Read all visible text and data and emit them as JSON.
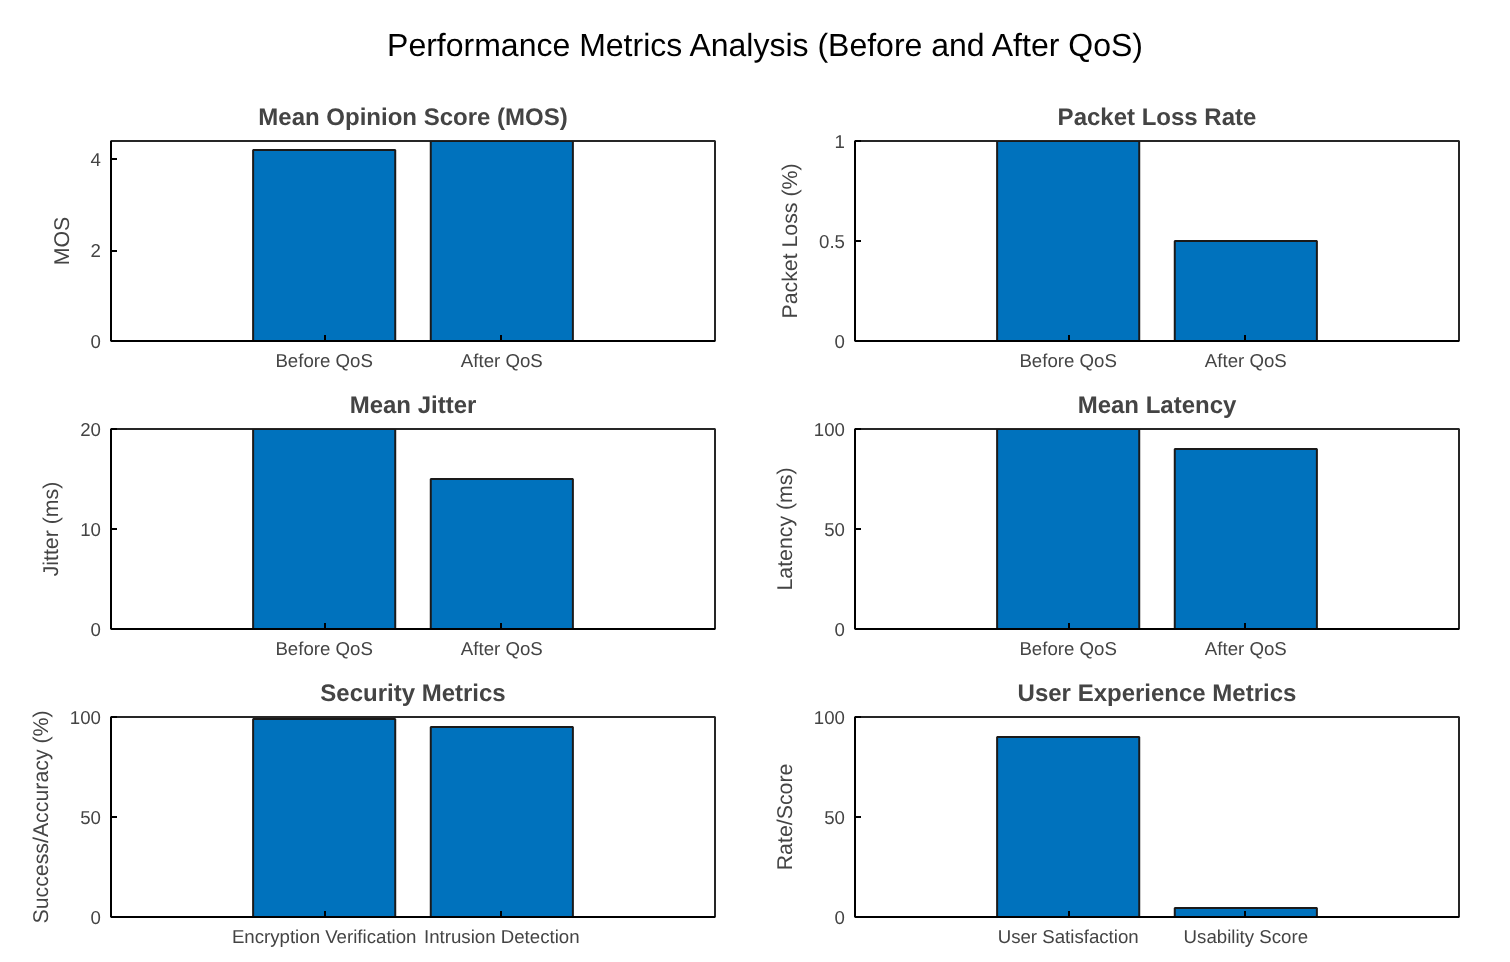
{
  "chart_data": [
    {
      "type": "bar",
      "title": "Mean Opinion Score (MOS)",
      "ylabel": "MOS",
      "categories": [
        "Before QoS",
        "After QoS"
      ],
      "values": [
        4.2,
        4.4
      ],
      "color": "#0072bd",
      "ylim": [
        0,
        4.4
      ],
      "yticks": [
        0,
        2,
        4
      ],
      "grid": false,
      "annotations": [
        "Performance Metrics Analysis (Before and After QoS)"
      ]
    },
    {
      "type": "bar",
      "title": "Packet Loss Rate",
      "ylabel": "Packet Loss (%)",
      "categories": [
        "Before QoS",
        "After QoS"
      ],
      "values": [
        1,
        0.5
      ],
      "color": "#0072bd",
      "ylim": [
        0,
        1
      ],
      "yticks": [
        0,
        0.5,
        1
      ],
      "grid": false
    },
    {
      "type": "bar",
      "title": "Mean Jitter",
      "ylabel": "Jitter (ms)",
      "categories": [
        "Before QoS",
        "After QoS"
      ],
      "values": [
        20,
        15
      ],
      "color": "#0072bd",
      "ylim": [
        0,
        20
      ],
      "yticks": [
        0,
        10,
        20
      ],
      "grid": false
    },
    {
      "type": "bar",
      "title": "Mean Latency",
      "ylabel": "Latency (ms)",
      "categories": [
        "Before QoS",
        "After QoS"
      ],
      "values": [
        100,
        90
      ],
      "color": "#0072bd",
      "ylim": [
        0,
        100
      ],
      "yticks": [
        0,
        50,
        100
      ],
      "grid": false
    },
    {
      "type": "bar",
      "title": "Security Metrics",
      "ylabel": "Success/Accuracy (%)",
      "categories": [
        "Encryption Verification",
        "Intrusion Detection"
      ],
      "values": [
        99,
        95
      ],
      "color": "#0072bd",
      "ylim": [
        0,
        100
      ],
      "yticks": [
        0,
        50,
        100
      ],
      "grid": false
    },
    {
      "type": "bar",
      "title": "User Experience Metrics",
      "ylabel": "Rate/Score",
      "categories": [
        "User Satisfaction",
        "Usability Score"
      ],
      "values": [
        90,
        4.5
      ],
      "color": "#0072bd",
      "ylim": [
        0,
        100
      ],
      "yticks": [
        0,
        50,
        100
      ],
      "grid": false
    }
  ]
}
